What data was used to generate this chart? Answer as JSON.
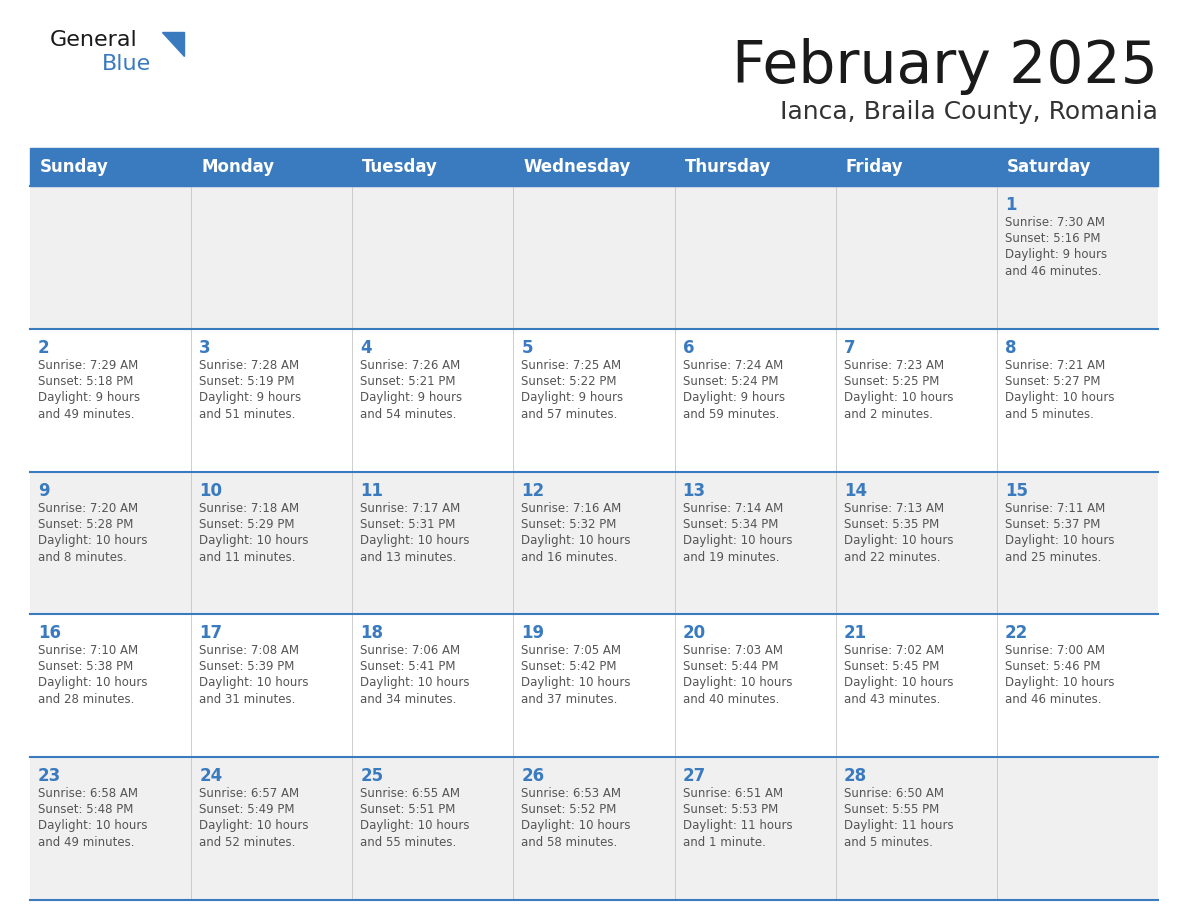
{
  "title": "February 2025",
  "subtitle": "Ianca, Braila County, Romania",
  "days_of_week": [
    "Sunday",
    "Monday",
    "Tuesday",
    "Wednesday",
    "Thursday",
    "Friday",
    "Saturday"
  ],
  "header_bg": "#3a7abf",
  "header_text": "#ffffff",
  "row_bg_even": "#f0f0f0",
  "row_bg_odd": "#ffffff",
  "border_color": "#3a7abf",
  "day_number_color": "#3a7abf",
  "cell_text_color": "#555555",
  "title_color": "#1a1a1a",
  "subtitle_color": "#333333",
  "general_color": "#1a1a1a",
  "blue_color": "#3a7abf",
  "calendar": [
    [
      null,
      null,
      null,
      null,
      null,
      null,
      {
        "day": 1,
        "sunrise": "7:30 AM",
        "sunset": "5:16 PM",
        "daylight": "9 hours\nand 46 minutes."
      }
    ],
    [
      {
        "day": 2,
        "sunrise": "7:29 AM",
        "sunset": "5:18 PM",
        "daylight": "9 hours\nand 49 minutes."
      },
      {
        "day": 3,
        "sunrise": "7:28 AM",
        "sunset": "5:19 PM",
        "daylight": "9 hours\nand 51 minutes."
      },
      {
        "day": 4,
        "sunrise": "7:26 AM",
        "sunset": "5:21 PM",
        "daylight": "9 hours\nand 54 minutes."
      },
      {
        "day": 5,
        "sunrise": "7:25 AM",
        "sunset": "5:22 PM",
        "daylight": "9 hours\nand 57 minutes."
      },
      {
        "day": 6,
        "sunrise": "7:24 AM",
        "sunset": "5:24 PM",
        "daylight": "9 hours\nand 59 minutes."
      },
      {
        "day": 7,
        "sunrise": "7:23 AM",
        "sunset": "5:25 PM",
        "daylight": "10 hours\nand 2 minutes."
      },
      {
        "day": 8,
        "sunrise": "7:21 AM",
        "sunset": "5:27 PM",
        "daylight": "10 hours\nand 5 minutes."
      }
    ],
    [
      {
        "day": 9,
        "sunrise": "7:20 AM",
        "sunset": "5:28 PM",
        "daylight": "10 hours\nand 8 minutes."
      },
      {
        "day": 10,
        "sunrise": "7:18 AM",
        "sunset": "5:29 PM",
        "daylight": "10 hours\nand 11 minutes."
      },
      {
        "day": 11,
        "sunrise": "7:17 AM",
        "sunset": "5:31 PM",
        "daylight": "10 hours\nand 13 minutes."
      },
      {
        "day": 12,
        "sunrise": "7:16 AM",
        "sunset": "5:32 PM",
        "daylight": "10 hours\nand 16 minutes."
      },
      {
        "day": 13,
        "sunrise": "7:14 AM",
        "sunset": "5:34 PM",
        "daylight": "10 hours\nand 19 minutes."
      },
      {
        "day": 14,
        "sunrise": "7:13 AM",
        "sunset": "5:35 PM",
        "daylight": "10 hours\nand 22 minutes."
      },
      {
        "day": 15,
        "sunrise": "7:11 AM",
        "sunset": "5:37 PM",
        "daylight": "10 hours\nand 25 minutes."
      }
    ],
    [
      {
        "day": 16,
        "sunrise": "7:10 AM",
        "sunset": "5:38 PM",
        "daylight": "10 hours\nand 28 minutes."
      },
      {
        "day": 17,
        "sunrise": "7:08 AM",
        "sunset": "5:39 PM",
        "daylight": "10 hours\nand 31 minutes."
      },
      {
        "day": 18,
        "sunrise": "7:06 AM",
        "sunset": "5:41 PM",
        "daylight": "10 hours\nand 34 minutes."
      },
      {
        "day": 19,
        "sunrise": "7:05 AM",
        "sunset": "5:42 PM",
        "daylight": "10 hours\nand 37 minutes."
      },
      {
        "day": 20,
        "sunrise": "7:03 AM",
        "sunset": "5:44 PM",
        "daylight": "10 hours\nand 40 minutes."
      },
      {
        "day": 21,
        "sunrise": "7:02 AM",
        "sunset": "5:45 PM",
        "daylight": "10 hours\nand 43 minutes."
      },
      {
        "day": 22,
        "sunrise": "7:00 AM",
        "sunset": "5:46 PM",
        "daylight": "10 hours\nand 46 minutes."
      }
    ],
    [
      {
        "day": 23,
        "sunrise": "6:58 AM",
        "sunset": "5:48 PM",
        "daylight": "10 hours\nand 49 minutes."
      },
      {
        "day": 24,
        "sunrise": "6:57 AM",
        "sunset": "5:49 PM",
        "daylight": "10 hours\nand 52 minutes."
      },
      {
        "day": 25,
        "sunrise": "6:55 AM",
        "sunset": "5:51 PM",
        "daylight": "10 hours\nand 55 minutes."
      },
      {
        "day": 26,
        "sunrise": "6:53 AM",
        "sunset": "5:52 PM",
        "daylight": "10 hours\nand 58 minutes."
      },
      {
        "day": 27,
        "sunrise": "6:51 AM",
        "sunset": "5:53 PM",
        "daylight": "11 hours\nand 1 minute."
      },
      {
        "day": 28,
        "sunrise": "6:50 AM",
        "sunset": "5:55 PM",
        "daylight": "11 hours\nand 5 minutes."
      },
      null
    ]
  ],
  "figsize": [
    11.88,
    9.18
  ],
  "dpi": 100
}
